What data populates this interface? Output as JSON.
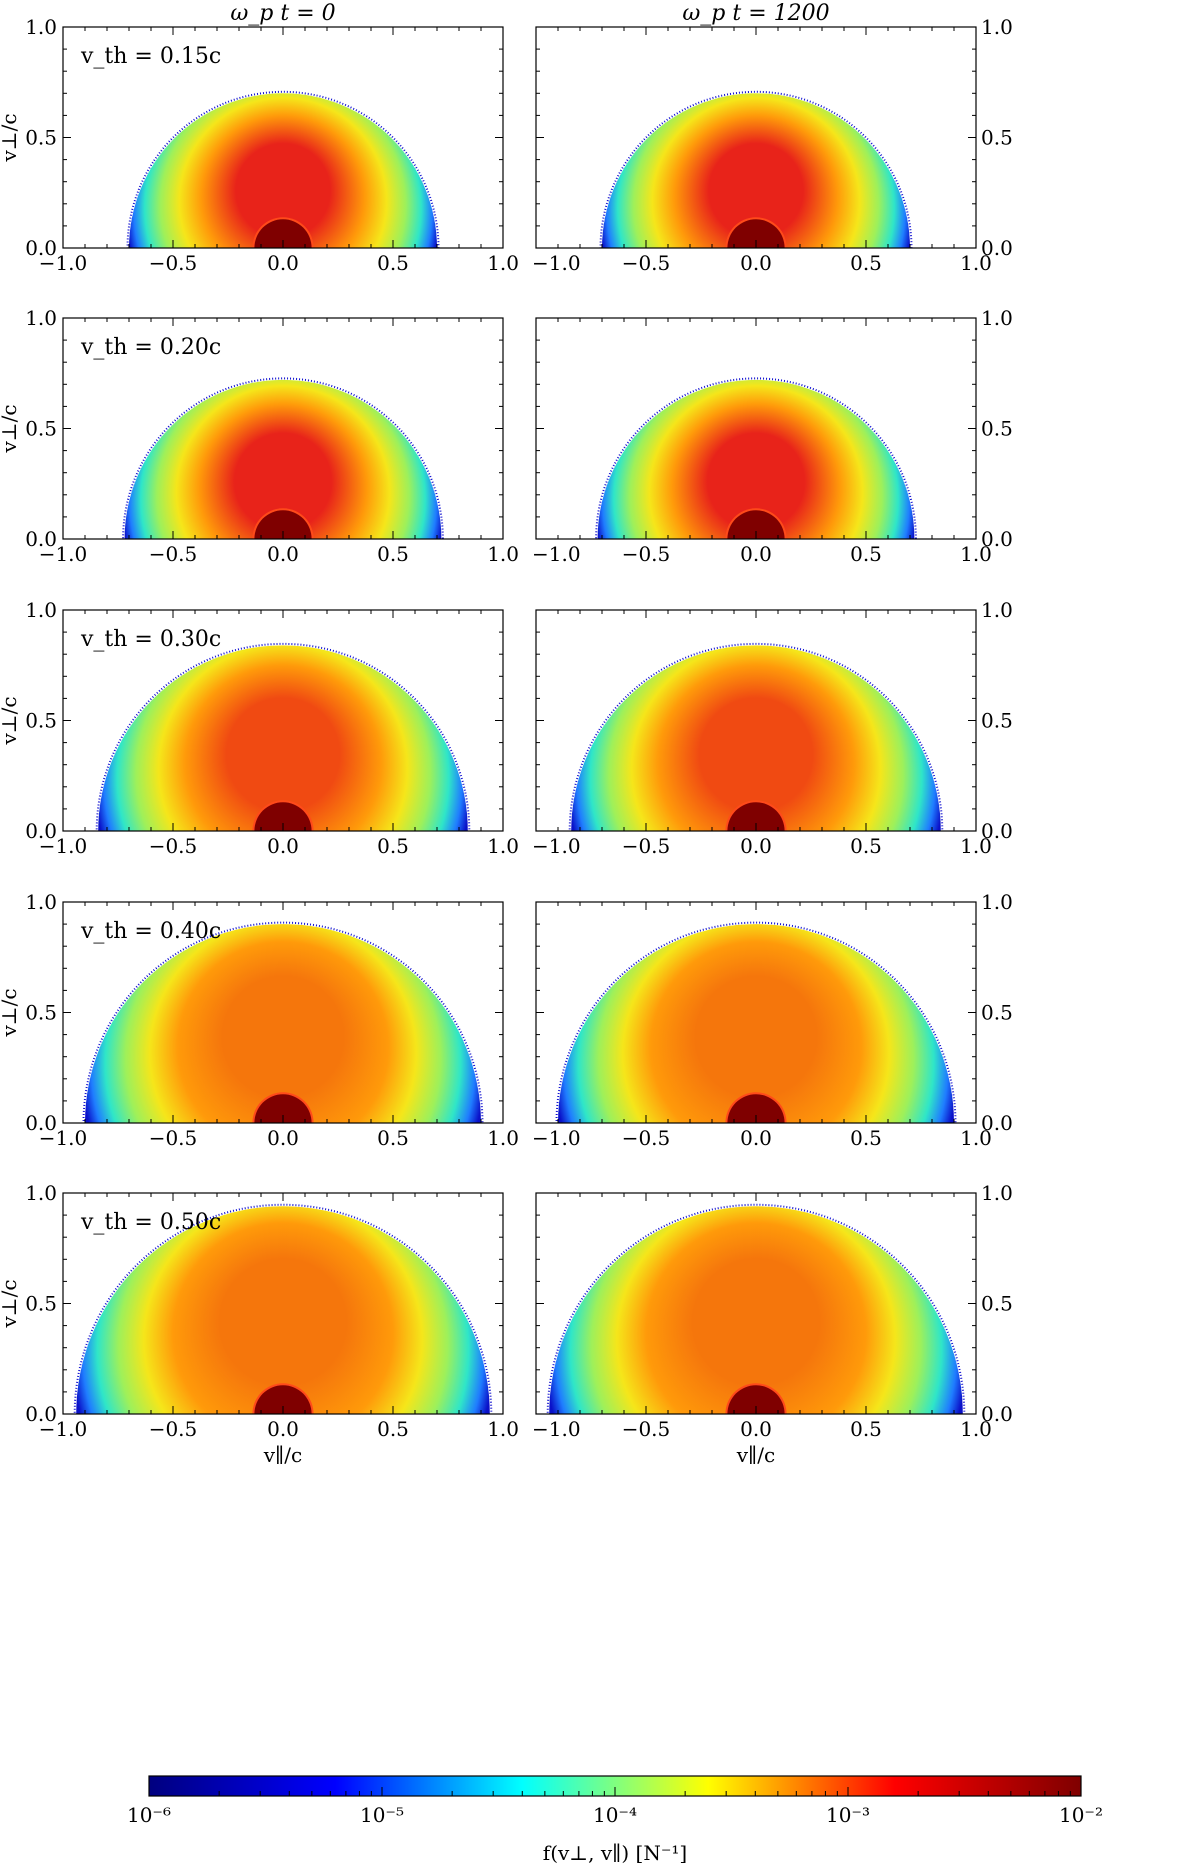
{
  "column_titles": [
    "ω_p t = 0",
    "ω_p t = 1200"
  ],
  "colorbar": {
    "label": "f(v⊥, v∥) [N⁻¹]",
    "scale": "log",
    "range": [
      1e-06,
      0.01
    ],
    "tick_labels": [
      "10⁻⁶",
      "10⁻⁵",
      "10⁻⁴",
      "10⁻³",
      "10⁻²"
    ],
    "colormap": "jet",
    "colors": [
      "#00007f",
      "#0000ff",
      "#00ffff",
      "#ffff00",
      "#ff0000",
      "#7f0000"
    ]
  },
  "chart_data": {
    "type": "heatmap",
    "xlabel": "v∥/c",
    "ylabel": "v⊥/c",
    "xlim": [
      -1.0,
      1.0
    ],
    "ylim": [
      0.0,
      1.0
    ],
    "x_ticks": [
      "−1.0",
      "−0.5",
      "0.0",
      "0.5",
      "1.0"
    ],
    "y_ticks": [
      "0.0",
      "0.5",
      "1.0"
    ],
    "rows": [
      {
        "label": "v_th = 0.15c",
        "v_th": 0.15,
        "outer_radius": 0.7,
        "core_peak_v_perp": 0.3
      },
      {
        "label": "v_th = 0.20c",
        "v_th": 0.2,
        "outer_radius": 0.72,
        "core_peak_v_perp": 0.3
      },
      {
        "label": "v_th = 0.30c",
        "v_th": 0.3,
        "outer_radius": 0.84,
        "core_peak_v_perp": 0.4
      },
      {
        "label": "v_th = 0.40c",
        "v_th": 0.4,
        "outer_radius": 0.9,
        "core_peak_v_perp": 0.45
      },
      {
        "label": "v_th = 0.50c",
        "v_th": 0.5,
        "outer_radius": 0.94,
        "core_peak_v_perp": 0.48
      }
    ],
    "inner_core_radius": 0.13,
    "columns": [
      "ω_p t = 0",
      "ω_p t = 1200"
    ]
  }
}
